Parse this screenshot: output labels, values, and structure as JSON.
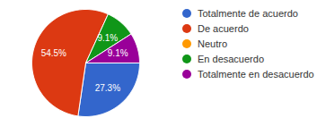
{
  "chart_data": {
    "type": "pie",
    "categories": [
      "Totalmente de acuerdo",
      "De acuerdo",
      "Neutro",
      "En desacuerdo",
      "Totalmente en desacuerdo"
    ],
    "values": [
      27.3,
      54.5,
      0,
      9.1,
      9.1
    ],
    "value_labels": [
      "27.3%",
      "54.5%",
      null,
      "9.1%",
      "9.1%"
    ],
    "colors": [
      "#3366cc",
      "#dc3912",
      "#ff9900",
      "#109618",
      "#990099"
    ],
    "data_labels": true,
    "legend": "right"
  }
}
